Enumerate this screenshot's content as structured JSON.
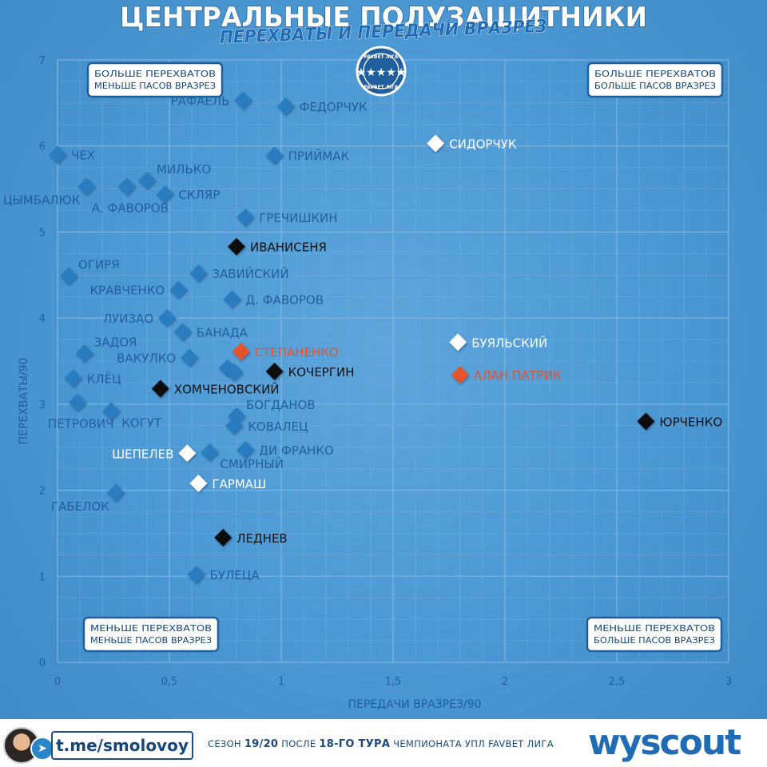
{
  "header": {
    "title": "ЦЕНТРАЛЬНЫЕ ПОЛУЗАЩИТНИКИ",
    "subtitle": "ПЕРЕХВАТЫ И ПЕРЕДАЧИ ВРАЗРЕЗ"
  },
  "logo": {
    "top_text": "FAVBET ЛІГА",
    "bottom_text": "FAVBET ЛІГА"
  },
  "quadrants": {
    "top_left": [
      "БОЛЬШЕ ПЕРЕХВАТОВ",
      "МЕНЬШЕ ПАСОВ ВРАЗРЕЗ"
    ],
    "top_right": [
      "БОЛЬШЕ ПЕРЕХВАТОВ",
      "БОЛЬШЕ ПАСОВ ВРАЗРЕЗ"
    ],
    "bottom_left": [
      "МЕНЬШЕ ПЕРЕХВАТОВ",
      "МЕНЬШЕ ПАСОВ ВРАЗРЕЗ"
    ],
    "bottom_right": [
      "МЕНЬШЕ ПЕРЕХВАТОВ",
      "БОЛЬШЕ ПАСОВ ВРАЗРЕЗ"
    ]
  },
  "colors": {
    "background": "#4a97d2",
    "grid": "#7fb7e3",
    "axis_text": "#1f5f9e",
    "blue": "#2b7bc0",
    "black": "#111111",
    "white": "#ffffff",
    "red": "#e4532c"
  },
  "chart_data": {
    "type": "scatter",
    "title": "ЦЕНТРАЛЬНЫЕ ПОЛУЗАЩИТНИКИ",
    "subtitle": "ПЕРЕХВАТЫ И ПЕРЕДАЧИ ВРАЗРЕЗ",
    "xlabel": "ПЕРЕДАЧИ ВРАЗРЕЗ/90",
    "ylabel": "ПЕРЕХВАТЫ/90",
    "xlim": [
      0,
      3
    ],
    "ylim": [
      0,
      7
    ],
    "xticks": [
      "0",
      "0,5",
      "1",
      "1,5",
      "2",
      "2,5",
      "3"
    ],
    "yticks": [
      "0",
      "1",
      "2",
      "3",
      "4",
      "5",
      "6",
      "7"
    ],
    "grid": true,
    "points": [
      {
        "label": "РАФАЕЛЬ",
        "x": 0.83,
        "y": 6.53,
        "color": "blue",
        "label_pos": "left"
      },
      {
        "label": "ФЕДОРЧУК",
        "x": 1.02,
        "y": 6.46,
        "color": "blue",
        "label_pos": "right"
      },
      {
        "label": "СИДОРЧУК",
        "x": 1.69,
        "y": 6.03,
        "color": "white",
        "label_pos": "right"
      },
      {
        "label": "ЧЕХ",
        "x": 0.0,
        "y": 5.9,
        "color": "blue",
        "label_pos": "right"
      },
      {
        "label": "ПРИЙМАК",
        "x": 0.97,
        "y": 5.89,
        "color": "blue",
        "label_pos": "right"
      },
      {
        "label": "МИЛЬКО",
        "x": 0.4,
        "y": 5.6,
        "color": "blue",
        "label_pos": "upright"
      },
      {
        "label": "ЦЫМБАЛЮК",
        "x": 0.13,
        "y": 5.53,
        "color": "blue",
        "label_pos": "lowleft"
      },
      {
        "label": "А. ФАВОРОВ",
        "x": 0.31,
        "y": 5.53,
        "color": "blue",
        "label_pos": "below"
      },
      {
        "label": "СКЛЯР",
        "x": 0.48,
        "y": 5.44,
        "color": "blue",
        "label_pos": "right"
      },
      {
        "label": "ГРЕЧИШКИН",
        "x": 0.84,
        "y": 5.17,
        "color": "blue",
        "label_pos": "right"
      },
      {
        "label": "ИВАНИСЕНЯ",
        "x": 0.8,
        "y": 4.83,
        "color": "black",
        "label_pos": "right"
      },
      {
        "label": "ОГИРЯ",
        "x": 0.05,
        "y": 4.49,
        "color": "blue",
        "label_pos": "upright"
      },
      {
        "label": "ЗАВИЙСКИЙ",
        "x": 0.63,
        "y": 4.52,
        "color": "blue",
        "label_pos": "right"
      },
      {
        "label": "КРАВЧЕНКО",
        "x": 0.54,
        "y": 4.33,
        "color": "blue",
        "label_pos": "left"
      },
      {
        "label": "Д. ФАВОРОВ",
        "x": 0.78,
        "y": 4.22,
        "color": "blue",
        "label_pos": "right"
      },
      {
        "label": "ЛУИЗАО",
        "x": 0.49,
        "y": 4.0,
        "color": "blue",
        "label_pos": "left"
      },
      {
        "label": "БАНАДА",
        "x": 0.56,
        "y": 3.84,
        "color": "blue",
        "label_pos": "right"
      },
      {
        "label": "ЗАДОЯ",
        "x": 0.12,
        "y": 3.59,
        "color": "blue",
        "label_pos": "upright"
      },
      {
        "label": "ВАКУЛКО",
        "x": 0.59,
        "y": 3.54,
        "color": "blue",
        "label_pos": "left"
      },
      {
        "label": "СТЕПАНЕНКО",
        "x": 0.82,
        "y": 3.61,
        "color": "red",
        "label_pos": "right"
      },
      {
        "label": "",
        "x": 0.76,
        "y": 3.42,
        "color": "blue",
        "label_pos": "none"
      },
      {
        "label": "",
        "x": 0.79,
        "y": 3.37,
        "color": "blue",
        "label_pos": "none"
      },
      {
        "label": "КОЧЕРГИН",
        "x": 0.97,
        "y": 3.38,
        "color": "black",
        "label_pos": "right"
      },
      {
        "label": "КЛЁЦ",
        "x": 0.07,
        "y": 3.3,
        "color": "blue",
        "label_pos": "right"
      },
      {
        "label": "ХОМЧЕНОВСКИЙ",
        "x": 0.46,
        "y": 3.18,
        "color": "black",
        "label_pos": "right"
      },
      {
        "label": "ПЕТРОВИЧ",
        "x": 0.09,
        "y": 3.02,
        "color": "blue",
        "label_pos": "below"
      },
      {
        "label": "КОГУТ",
        "x": 0.24,
        "y": 2.92,
        "color": "blue",
        "label_pos": "lowright"
      },
      {
        "label": "БОГДАНОВ",
        "x": 0.8,
        "y": 2.86,
        "color": "blue",
        "label_pos": "upright"
      },
      {
        "label": "КОВАЛЕЦ",
        "x": 0.79,
        "y": 2.75,
        "color": "blue",
        "label_pos": "right"
      },
      {
        "label": "ДИ ФРАНКО",
        "x": 0.84,
        "y": 2.47,
        "color": "blue",
        "label_pos": "right"
      },
      {
        "label": "ШЕПЕЛЕВ",
        "x": 0.58,
        "y": 2.43,
        "color": "white",
        "label_pos": "left"
      },
      {
        "label": "СМИРНЫЙ",
        "x": 0.68,
        "y": 2.44,
        "color": "blue",
        "label_pos": "lowright"
      },
      {
        "label": "ГАРМАШ",
        "x": 0.63,
        "y": 2.08,
        "color": "white",
        "label_pos": "right"
      },
      {
        "label": "ГАБЕЛОК",
        "x": 0.26,
        "y": 1.97,
        "color": "blue",
        "label_pos": "lowleft"
      },
      {
        "label": "ЛЕДНЕВ",
        "x": 0.74,
        "y": 1.45,
        "color": "black",
        "label_pos": "right"
      },
      {
        "label": "БУЛЕЦА",
        "x": 0.62,
        "y": 1.02,
        "color": "blue",
        "label_pos": "right"
      },
      {
        "label": "БУЯЛЬСКИЙ",
        "x": 1.79,
        "y": 3.72,
        "color": "white",
        "label_pos": "right"
      },
      {
        "label": "АЛАН ПАТРИК",
        "x": 1.8,
        "y": 3.34,
        "color": "red",
        "label_pos": "right"
      },
      {
        "label": "ЮРЧЕНКО",
        "x": 2.63,
        "y": 2.8,
        "color": "black",
        "label_pos": "right"
      }
    ]
  },
  "footer": {
    "handle": "t.me/smolovoy",
    "season_prefix": "СЕЗОН",
    "season_bold": "19/20",
    "season_mid": "ПОСЛЕ",
    "round_bold": "18-ГО ТУРА",
    "season_suffix": "ЧЕМПИОНАТА УПЛ FAVBET ЛИГА",
    "brand": "wyscout"
  }
}
